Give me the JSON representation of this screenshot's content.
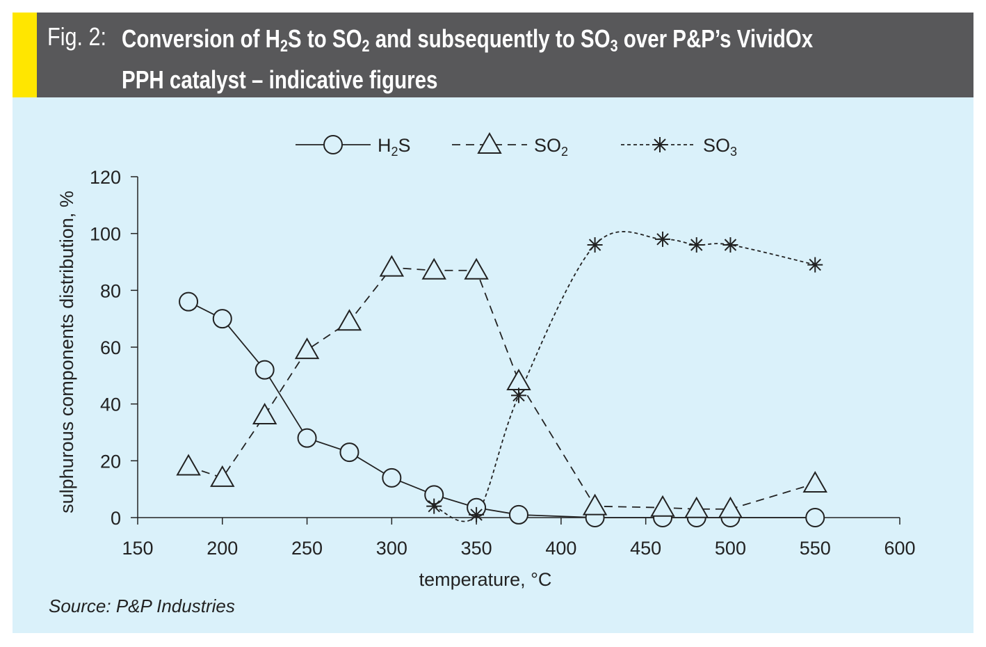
{
  "header": {
    "fig_label": "Fig. 2:",
    "title_parts": [
      "Conversion of H",
      "2",
      "S to SO",
      "2",
      " and subsequently to SO",
      "3",
      " over P&P’s VividOx"
    ],
    "title_line2": "PPH catalyst – indicative figures"
  },
  "source": "Source: P&P Industries",
  "colors": {
    "header_bg": "#58585a",
    "accent": "#ffe600",
    "plot_bg": "#daf1fa",
    "ink": "#222222"
  },
  "chart_data": {
    "type": "line",
    "title": "Conversion of H2S to SO2 and subsequently to SO3 over P&P’s VividOx PPH catalyst – indicative figures",
    "xlabel": "temperature, °C",
    "ylabel": "sulphurous components distribution, %",
    "xlim": [
      150,
      600
    ],
    "ylim": [
      0,
      120
    ],
    "xticks": [
      150,
      200,
      250,
      300,
      350,
      400,
      450,
      500,
      550,
      600
    ],
    "yticks": [
      0,
      20,
      40,
      60,
      80,
      100,
      120
    ],
    "legend_position": "top",
    "series": [
      {
        "name": "H2S",
        "label_main": "H",
        "label_sub": "2",
        "label_tail": "S",
        "marker": "circle",
        "line": "solid",
        "x": [
          180,
          200,
          225,
          250,
          275,
          300,
          325,
          350,
          375,
          420,
          460,
          480,
          500,
          550
        ],
        "y": [
          76,
          70,
          52,
          28,
          23,
          14,
          8,
          3.5,
          1,
          0,
          0,
          0,
          0,
          0
        ]
      },
      {
        "name": "SO2",
        "label_main": "SO",
        "label_sub": "2",
        "label_tail": "",
        "marker": "triangle",
        "line": "dashed",
        "x": [
          180,
          200,
          225,
          250,
          275,
          300,
          325,
          350,
          375,
          420,
          460,
          480,
          500,
          550
        ],
        "y": [
          18,
          14,
          36,
          59,
          69,
          88,
          87,
          87,
          48,
          4,
          3.5,
          3,
          3,
          12
        ]
      },
      {
        "name": "SO3",
        "label_main": "SO",
        "label_sub": "3",
        "label_tail": "",
        "marker": "asterisk",
        "line": "dotted",
        "x": [
          325,
          350,
          375,
          420,
          460,
          480,
          500,
          550
        ],
        "y": [
          4,
          1,
          43,
          96,
          98,
          96,
          96,
          89
        ]
      }
    ]
  }
}
